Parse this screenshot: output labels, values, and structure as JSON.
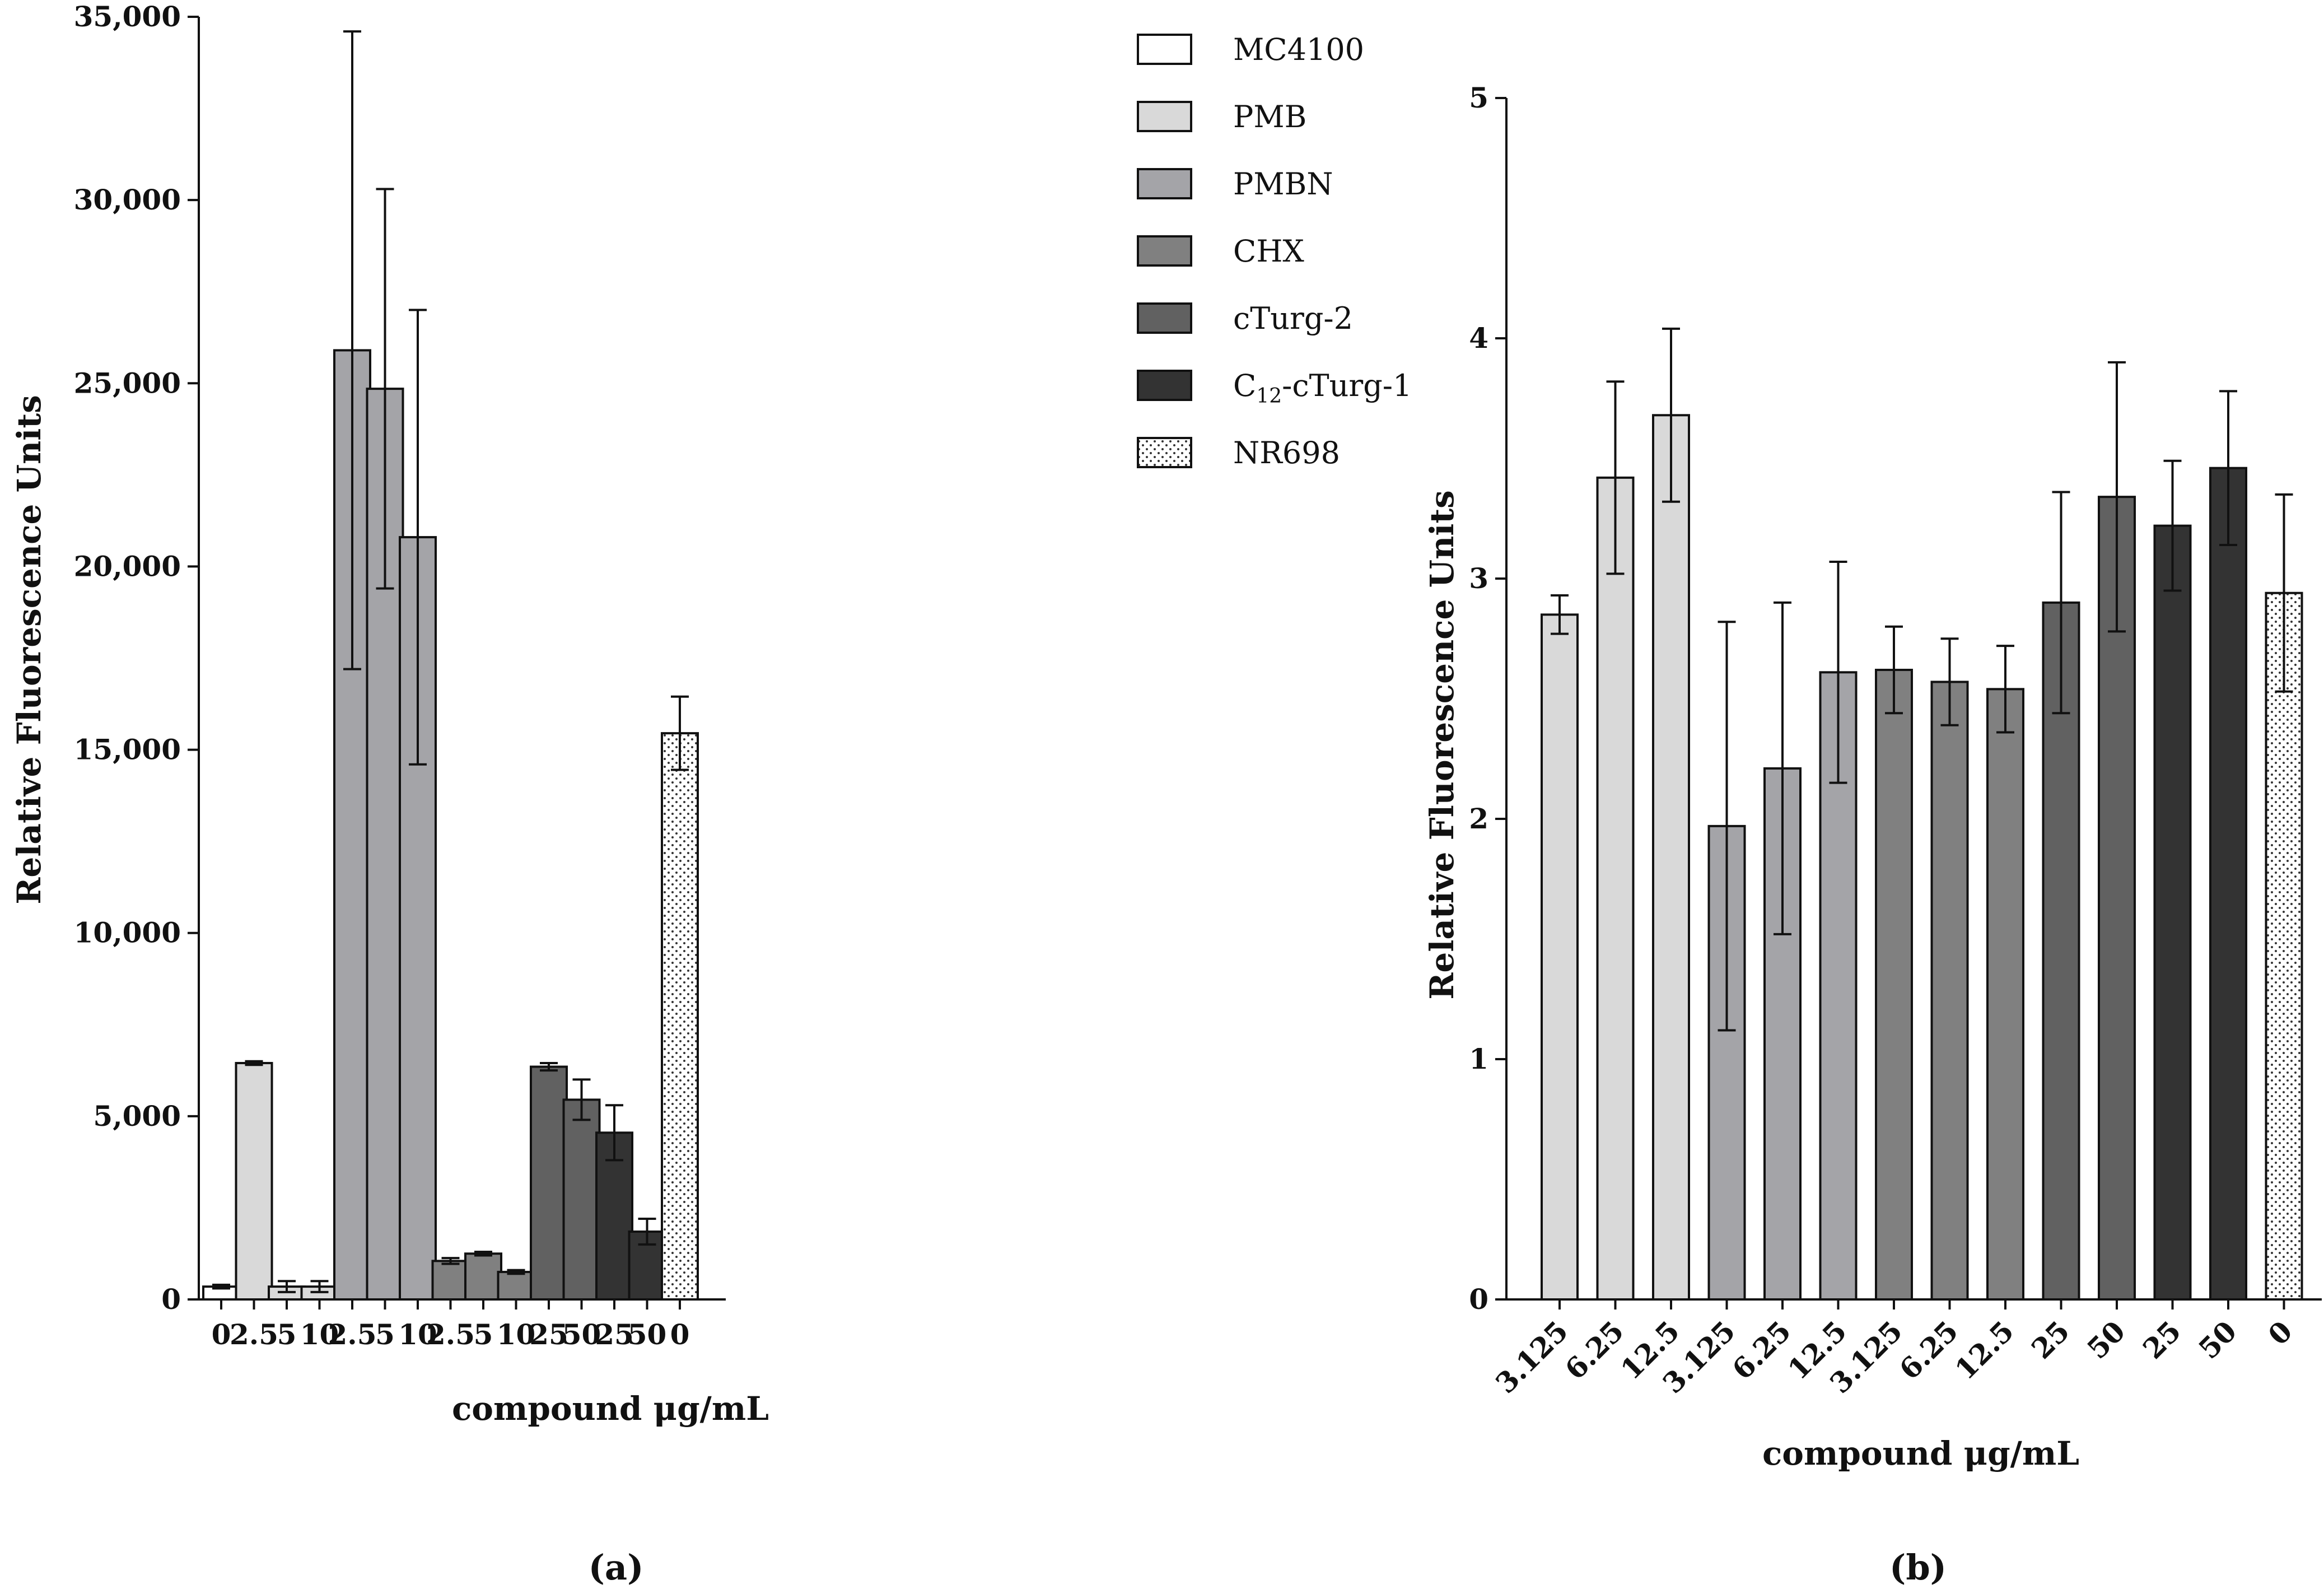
{
  "legend": [
    {
      "label": "MC4100",
      "color": "#ffffff",
      "pattern": "none"
    },
    {
      "label": "PMB",
      "color": "#d9d9d9",
      "pattern": "none"
    },
    {
      "label": "PMBN",
      "color": "#a4a4a8",
      "pattern": "none"
    },
    {
      "label": "CHX",
      "color": "#808080",
      "pattern": "none"
    },
    {
      "label": "cTurg-2",
      "color": "#616161",
      "pattern": "none"
    },
    {
      "label_pre": "C",
      "label_sub": "12",
      "label_post": "-cTurg-1",
      "color": "#333333",
      "pattern": "none"
    },
    {
      "label": "NR698",
      "color": "#ffffff",
      "pattern": "dots"
    }
  ],
  "chart_data": [
    {
      "type": "bar",
      "panel_label": "(a)",
      "xlabel": "compound μg/mL",
      "ylabel": "Relative Fluorescence Units",
      "ylim": [
        0,
        35000
      ],
      "yticks": [
        0,
        5000,
        10000,
        15000,
        20000,
        25000,
        30000,
        35000
      ],
      "ytick_labels": [
        "0",
        "5,000",
        "10,000",
        "15,000",
        "20,000",
        "25,000",
        "30,000",
        "35,000"
      ],
      "x_tick_rotation": 0,
      "bars": [
        {
          "category": "0",
          "group": "MC4100",
          "value": 350,
          "error": 50
        },
        {
          "category": "2.5",
          "group": "PMB",
          "value": 6450,
          "error": 50
        },
        {
          "category": "5",
          "group": "PMB",
          "value": 350,
          "error": 150
        },
        {
          "category": "10",
          "group": "PMB",
          "value": 350,
          "error": 150
        },
        {
          "category": "2.5",
          "group": "PMBN",
          "value": 25900,
          "error": 8700
        },
        {
          "category": "5",
          "group": "PMBN",
          "value": 24850,
          "error": 5450
        },
        {
          "category": "10",
          "group": "PMBN",
          "value": 20800,
          "error": 6200
        },
        {
          "category": "2.5",
          "group": "CHX",
          "value": 1050,
          "error": 80
        },
        {
          "category": "5",
          "group": "CHX",
          "value": 1250,
          "error": 50
        },
        {
          "category": "10",
          "group": "CHX",
          "value": 750,
          "error": 50
        },
        {
          "category": "25",
          "group": "cTurg-2",
          "value": 6350,
          "error": 100
        },
        {
          "category": "50",
          "group": "cTurg-2",
          "value": 5450,
          "error": 550
        },
        {
          "category": "25",
          "group": "C12-cTurg-1",
          "value": 4550,
          "error": 750
        },
        {
          "category": "50",
          "group": "C12-cTurg-1",
          "value": 1850,
          "error": 350
        },
        {
          "category": "0",
          "group": "NR698",
          "value": 15450,
          "error": 1000
        }
      ]
    },
    {
      "type": "bar",
      "panel_label": "(b)",
      "xlabel": "compound μg/mL",
      "ylabel": "Relative Fluorescence Units",
      "ylim": [
        0,
        5
      ],
      "yticks": [
        0,
        1,
        2,
        3,
        4,
        5
      ],
      "ytick_labels": [
        "0",
        "1",
        "2",
        "3",
        "4",
        "5"
      ],
      "x_tick_rotation": -45,
      "bars": [
        {
          "category": "3.125",
          "group": "PMB",
          "value": 2.85,
          "error": 0.08
        },
        {
          "category": "6.25",
          "group": "PMB",
          "value": 3.42,
          "error": 0.4
        },
        {
          "category": "12.5",
          "group": "PMB",
          "value": 3.68,
          "error": 0.36
        },
        {
          "category": "3.125",
          "group": "PMBN",
          "value": 1.97,
          "error": 0.85
        },
        {
          "category": "6.25",
          "group": "PMBN",
          "value": 2.21,
          "error": 0.69
        },
        {
          "category": "12.5",
          "group": "PMBN",
          "value": 2.61,
          "error": 0.46
        },
        {
          "category": "3.125",
          "group": "CHX",
          "value": 2.62,
          "error": 0.18
        },
        {
          "category": "6.25",
          "group": "CHX",
          "value": 2.57,
          "error": 0.18
        },
        {
          "category": "12.5",
          "group": "CHX",
          "value": 2.54,
          "error": 0.18
        },
        {
          "category": "25",
          "group": "cTurg-2",
          "value": 2.9,
          "error": 0.46
        },
        {
          "category": "50",
          "group": "cTurg-2",
          "value": 3.34,
          "error": 0.56
        },
        {
          "category": "25",
          "group": "C12-cTurg-1",
          "value": 3.22,
          "error": 0.27
        },
        {
          "category": "50",
          "group": "C12-cTurg-1",
          "value": 3.46,
          "error": 0.32
        },
        {
          "category": "0",
          "group": "NR698",
          "value": 2.94,
          "error": 0.41
        }
      ]
    }
  ]
}
